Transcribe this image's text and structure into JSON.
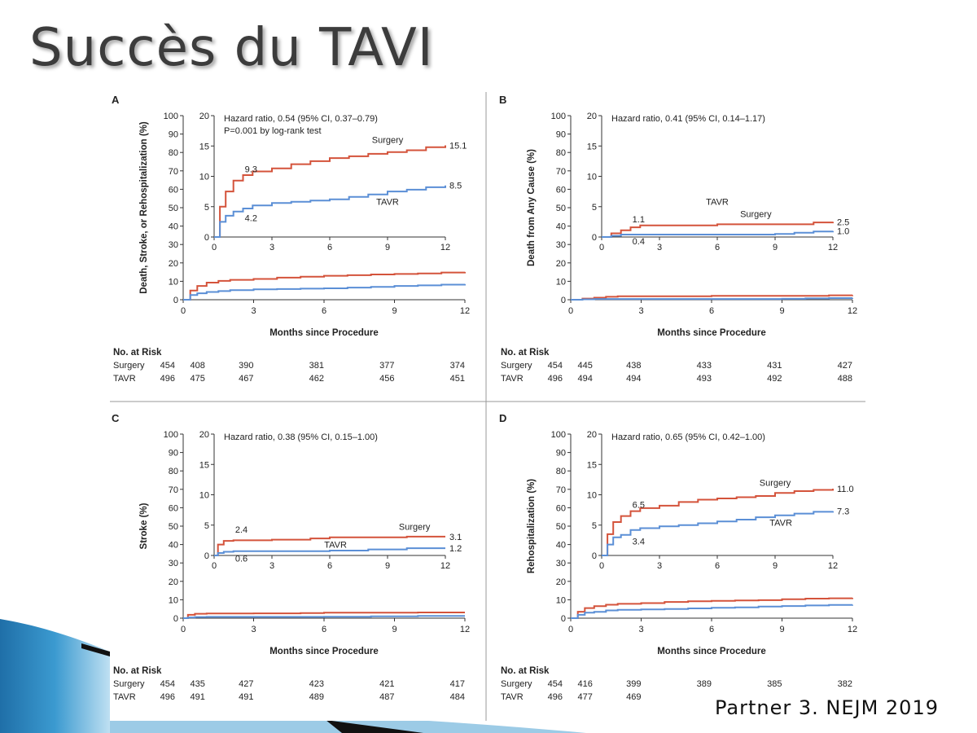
{
  "slide": {
    "title": "Succès du TAVI",
    "citation": "Partner 3. NEJM 2019"
  },
  "colors": {
    "surgery": "#d4533b",
    "tavr": "#5b8fd6",
    "axis": "#333333"
  },
  "chart_data": [
    {
      "panel": "A",
      "type": "line",
      "ylabel": "Death, Stroke, or Rehospitalization (%)",
      "xlabel": "Months since Procedure",
      "xlim": [
        0,
        12
      ],
      "ylim": [
        0,
        100
      ],
      "xticks": [
        0,
        3,
        6,
        9,
        12
      ],
      "yticks": [
        0,
        10,
        20,
        30,
        40,
        50,
        60,
        70,
        80,
        90,
        100
      ],
      "series": [
        {
          "name": "Surgery",
          "key": "surgery",
          "x": [
            0,
            0.3,
            0.6,
            1,
            1.5,
            2,
            3,
            4,
            5,
            6,
            7,
            8,
            9,
            10,
            11,
            12
          ],
          "y": [
            0,
            5,
            7.5,
            9.3,
            10.2,
            10.8,
            11.3,
            12,
            12.5,
            13,
            13.3,
            13.7,
            14,
            14.3,
            14.8,
            15.1
          ]
        },
        {
          "name": "TAVR",
          "key": "tavr",
          "x": [
            0,
            0.3,
            0.6,
            1,
            1.5,
            2,
            3,
            4,
            5,
            6,
            7,
            8,
            9,
            10,
            11,
            12
          ],
          "y": [
            0,
            2.5,
            3.5,
            4.2,
            4.7,
            5.2,
            5.6,
            5.8,
            6,
            6.2,
            6.6,
            7,
            7.5,
            7.8,
            8.2,
            8.5
          ]
        }
      ],
      "inset": {
        "ylim": [
          0,
          20
        ],
        "yticks": [
          0,
          5,
          10,
          15,
          20
        ],
        "xticks": [
          0,
          3,
          6,
          9,
          12
        ],
        "notes": [
          "Hazard ratio, 0.54 (95% CI, 0.37–0.79)",
          "P=0.001 by log-rank test"
        ],
        "end_labels": {
          "surgery": "15.1",
          "tavr": "8.5"
        },
        "point_labels": [
          {
            "text": "9.3",
            "x": 1,
            "y": 9.3,
            "key": "surgery"
          },
          {
            "text": "4.2",
            "x": 1,
            "y": 4.2,
            "key": "tavr"
          }
        ],
        "series_labels": [
          {
            "text": "Surgery",
            "key": "surgery",
            "x": 9,
            "y": 15.5
          },
          {
            "text": "TAVR",
            "key": "tavr",
            "x": 9,
            "y": 5.3
          }
        ]
      },
      "risk": {
        "header": "No. at Risk",
        "rows": [
          {
            "label": "Surgery",
            "values": [
              "454",
              "408",
              "390",
              "381",
              "377",
              "374"
            ]
          },
          {
            "label": "TAVR",
            "values": [
              "496",
              "475",
              "467",
              "462",
              "456",
              "451"
            ]
          }
        ]
      }
    },
    {
      "panel": "B",
      "type": "line",
      "ylabel": "Death from Any Cause (%)",
      "xlabel": "Months since Procedure",
      "xlim": [
        0,
        12
      ],
      "ylim": [
        0,
        100
      ],
      "xticks": [
        0,
        3,
        6,
        9,
        12
      ],
      "yticks": [
        0,
        10,
        20,
        30,
        40,
        50,
        60,
        70,
        80,
        90,
        100
      ],
      "series": [
        {
          "name": "Surgery",
          "key": "surgery",
          "x": [
            0,
            0.5,
            1,
            1.5,
            2,
            6,
            9,
            11,
            12
          ],
          "y": [
            0,
            0.6,
            1.1,
            1.6,
            1.9,
            2.1,
            2.1,
            2.4,
            2.5
          ]
        },
        {
          "name": "TAVR",
          "key": "tavr",
          "x": [
            0,
            0.5,
            1,
            2,
            6,
            9,
            10,
            11,
            12
          ],
          "y": [
            0,
            0.2,
            0.4,
            0.4,
            0.4,
            0.5,
            0.7,
            0.9,
            1.0
          ]
        }
      ],
      "inset": {
        "ylim": [
          0,
          20
        ],
        "yticks": [
          0,
          5,
          10,
          15,
          20
        ],
        "xticks": [
          0,
          3,
          6,
          9,
          12
        ],
        "notes": [
          "Hazard ratio, 0.41 (95% CI, 0.14–1.17)"
        ],
        "end_labels": {
          "surgery": "2.5",
          "tavr": "1.0"
        },
        "point_labels": [
          {
            "text": "1.1",
            "x": 1,
            "y": 1.1,
            "key": "surgery"
          },
          {
            "text": "0.4",
            "x": 1,
            "y": 0.4,
            "key": "tavr"
          }
        ],
        "series_labels": [
          {
            "text": "Surgery",
            "key": "surgery",
            "x": 8,
            "y": 3.3
          },
          {
            "text": "TAVR",
            "key": "tavr",
            "x": 6,
            "y": 5.3
          }
        ]
      },
      "risk": {
        "header": "No. at Risk",
        "rows": [
          {
            "label": "Surgery",
            "values": [
              "454",
              "445",
              "438",
              "433",
              "431",
              "427"
            ]
          },
          {
            "label": "TAVR",
            "values": [
              "496",
              "494",
              "494",
              "493",
              "492",
              "488"
            ]
          }
        ]
      }
    },
    {
      "panel": "C",
      "type": "line",
      "ylabel": "Stroke (%)",
      "xlabel": "Months since Procedure",
      "xlim": [
        0,
        12
      ],
      "ylim": [
        0,
        100
      ],
      "xticks": [
        0,
        3,
        6,
        9,
        12
      ],
      "yticks": [
        0,
        10,
        20,
        30,
        40,
        50,
        60,
        70,
        80,
        90,
        100
      ],
      "series": [
        {
          "name": "Surgery",
          "key": "surgery",
          "x": [
            0,
            0.2,
            0.5,
            1,
            3,
            5,
            6,
            8,
            10,
            12
          ],
          "y": [
            0,
            1.8,
            2.4,
            2.5,
            2.6,
            2.8,
            3.0,
            3.0,
            3.1,
            3.1
          ]
        },
        {
          "name": "TAVR",
          "key": "tavr",
          "x": [
            0,
            0.2,
            0.5,
            1,
            3,
            6,
            8,
            10,
            12
          ],
          "y": [
            0,
            0.4,
            0.6,
            0.7,
            0.7,
            0.8,
            1.0,
            1.2,
            1.2
          ]
        }
      ],
      "inset": {
        "ylim": [
          0,
          20
        ],
        "yticks": [
          0,
          5,
          10,
          15,
          20
        ],
        "xticks": [
          0,
          3,
          6,
          9,
          12
        ],
        "notes": [
          "Hazard ratio, 0.38 (95% CI, 0.15–1.00)"
        ],
        "end_labels": {
          "surgery": "3.1",
          "tavr": "1.2"
        },
        "point_labels": [
          {
            "text": "2.4",
            "x": 0.5,
            "y": 2.4,
            "key": "surgery"
          },
          {
            "text": "0.6",
            "x": 0.5,
            "y": 0.6,
            "key": "tavr"
          }
        ],
        "series_labels": [
          {
            "text": "Surgery",
            "key": "surgery",
            "x": 10.4,
            "y": 4.2
          },
          {
            "text": "TAVR",
            "key": "tavr",
            "x": 6.3,
            "y": 1.3
          }
        ]
      },
      "risk": {
        "header": "No. at Risk",
        "rows": [
          {
            "label": "Surgery",
            "values": [
              "454",
              "435",
              "427",
              "423",
              "421",
              "417"
            ]
          },
          {
            "label": "TAVR",
            "values": [
              "496",
              "491",
              "491",
              "489",
              "487",
              "484"
            ]
          }
        ]
      }
    },
    {
      "panel": "D",
      "type": "line",
      "ylabel": "Rehospitalization (%)",
      "xlabel": "Months since Procedure",
      "xlim": [
        0,
        12
      ],
      "ylim": [
        0,
        100
      ],
      "xticks": [
        0,
        3,
        6,
        9,
        12
      ],
      "yticks": [
        0,
        10,
        20,
        30,
        40,
        50,
        60,
        70,
        80,
        90,
        100
      ],
      "series": [
        {
          "name": "Surgery",
          "key": "surgery",
          "x": [
            0,
            0.3,
            0.6,
            1,
            1.5,
            2,
            3,
            4,
            5,
            6,
            7,
            8,
            9,
            10,
            11,
            12
          ],
          "y": [
            0,
            3.5,
            5.5,
            6.5,
            7.3,
            7.8,
            8.2,
            8.8,
            9.2,
            9.4,
            9.6,
            9.8,
            10.3,
            10.6,
            10.8,
            11.0
          ]
        },
        {
          "name": "TAVR",
          "key": "tavr",
          "x": [
            0,
            0.3,
            0.6,
            1,
            1.5,
            2,
            3,
            4,
            5,
            6,
            7,
            8,
            9,
            10,
            11,
            12
          ],
          "y": [
            0,
            1.8,
            3.0,
            3.4,
            4.2,
            4.5,
            4.8,
            5.0,
            5.3,
            5.6,
            5.9,
            6.3,
            6.6,
            6.9,
            7.2,
            7.3
          ]
        }
      ],
      "inset": {
        "ylim": [
          0,
          20
        ],
        "yticks": [
          0,
          5,
          10,
          15,
          20
        ],
        "xticks": [
          0,
          3,
          6,
          9,
          12
        ],
        "notes": [
          "Hazard ratio, 0.65 (95% CI, 0.42–1.00)"
        ],
        "end_labels": {
          "surgery": "11.0",
          "tavr": "7.3"
        },
        "point_labels": [
          {
            "text": "6.5",
            "x": 1,
            "y": 6.5,
            "key": "surgery"
          },
          {
            "text": "3.4",
            "x": 1,
            "y": 3.4,
            "key": "tavr"
          }
        ],
        "series_labels": [
          {
            "text": "Surgery",
            "key": "surgery",
            "x": 9,
            "y": 11.5
          },
          {
            "text": "TAVR",
            "key": "tavr",
            "x": 9.3,
            "y": 4.9
          }
        ]
      },
      "risk": {
        "header": "No. at Risk",
        "rows": [
          {
            "label": "Surgery",
            "values": [
              "454",
              "416",
              "399",
              "389",
              "385",
              "382"
            ]
          },
          {
            "label": "TAVR",
            "values": [
              "496",
              "477",
              "469",
              "",
              "",
              ""
            ]
          }
        ]
      }
    }
  ]
}
